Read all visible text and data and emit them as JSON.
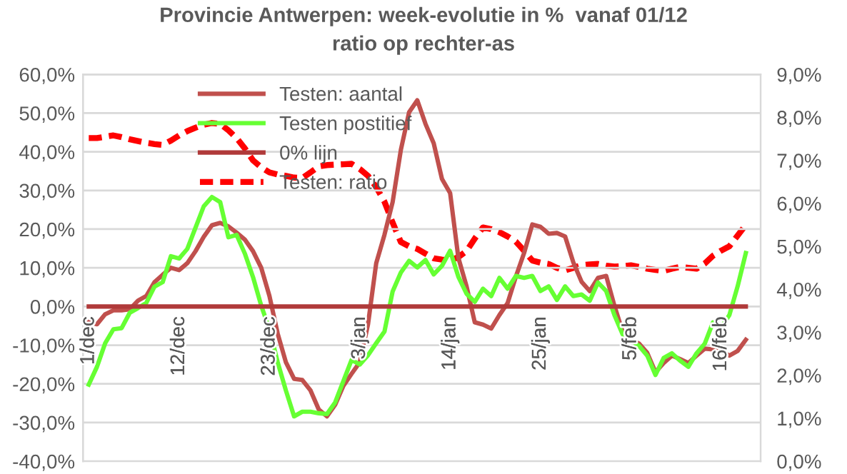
{
  "chart_data": {
    "type": "line",
    "title": "Provincie Antwerpen: week-evolutie in %  vanaf 01/12",
    "subtitle": "ratio op rechter-as",
    "categories": [
      "1/dec",
      null,
      null,
      null,
      null,
      null,
      null,
      null,
      null,
      null,
      null,
      "12/dec",
      null,
      null,
      null,
      null,
      null,
      null,
      null,
      null,
      null,
      null,
      "23/dec",
      null,
      null,
      null,
      null,
      null,
      null,
      null,
      null,
      null,
      null,
      "3/jan",
      null,
      null,
      null,
      null,
      null,
      null,
      null,
      null,
      null,
      null,
      "14/jan",
      null,
      null,
      null,
      null,
      null,
      null,
      null,
      null,
      null,
      null,
      "25/jan",
      null,
      null,
      null,
      null,
      null,
      null,
      null,
      null,
      null,
      null,
      "5/feb",
      null,
      null,
      null,
      null,
      null,
      null,
      null,
      null,
      null,
      null,
      "16/feb",
      null,
      null,
      null
    ],
    "series": [
      {
        "name": "Testen: aantal",
        "color": "#c0504d",
        "line_style": "solid",
        "values": [
          -4,
          -4.6,
          -2,
          -1,
          -1,
          -0.7,
          1.5,
          2.7,
          6.3,
          8.2,
          10,
          9.4,
          11.2,
          14.3,
          18,
          21,
          21.6,
          20.7,
          19.1,
          17.3,
          14.3,
          10,
          2.7,
          -7,
          -14.4,
          -18.7,
          -19,
          -21.7,
          -26.6,
          -28.4,
          -25.4,
          -20.5,
          -17.4,
          -14.4,
          -4.6,
          11.2,
          18.5,
          27,
          40.5,
          50.2,
          53.3,
          47.2,
          42.2,
          33,
          29.3,
          12.6,
          5.2,
          -4.1,
          -4.7,
          -5.7,
          -2.2,
          0.9,
          7.7,
          13.8,
          21.2,
          20.6,
          18.8,
          19,
          18.1,
          11.4,
          6.4,
          4,
          7.4,
          7.9,
          0.2,
          -6.5,
          -8.6,
          -9.6,
          -12,
          -17,
          -14.6,
          -12.7,
          -13.6,
          -14.6,
          -12.7,
          -10.9,
          -11.1,
          -11.5,
          -12.7,
          -11.5,
          -8.6
        ]
      },
      {
        "name": "Testen postitief",
        "color": "#66ff33",
        "line_style": "solid",
        "values": [
          -20.2,
          -15.6,
          -9.5,
          -5.9,
          -5.6,
          -1.6,
          -0.4,
          0.9,
          5.1,
          6.3,
          13,
          12.4,
          14.9,
          20.4,
          25.9,
          28.3,
          27,
          17.9,
          18.5,
          13.7,
          7.6,
          0.2,
          -5.9,
          -14.4,
          -21.7,
          -28.4,
          -27.2,
          -27.2,
          -27.6,
          -27.8,
          -24.8,
          -19.3,
          -13.8,
          -15,
          -12.6,
          -9.5,
          -6.5,
          3.9,
          8.8,
          11.8,
          10.1,
          12,
          8.3,
          10.5,
          14.4,
          7.7,
          3.3,
          1.2,
          4.6,
          2.7,
          7.4,
          4.6,
          7.9,
          7.4,
          7.9,
          4,
          5.2,
          1.7,
          5.2,
          2.7,
          3.1,
          1.5,
          6.2,
          4,
          -2.2,
          -7.2,
          -8.6,
          -10.2,
          -12.7,
          -17.7,
          -13.3,
          -12.1,
          -14,
          -15.6,
          -12.1,
          -9.6,
          -4.1,
          -5.4,
          -2.2,
          5.2,
          13.8
        ]
      },
      {
        "name": "0% lijn",
        "color": "#b03a3a",
        "line_style": "solid",
        "values": [
          0,
          0,
          0,
          0,
          0,
          0,
          0,
          0,
          0,
          0,
          0,
          0,
          0,
          0,
          0,
          0,
          0,
          0,
          0,
          0,
          0,
          0,
          0,
          0,
          0,
          0,
          0,
          0,
          0,
          0,
          0,
          0,
          0,
          0,
          0,
          0,
          0,
          0,
          0,
          0,
          0,
          0,
          0,
          0,
          0,
          0,
          0,
          0,
          0,
          0,
          0,
          0,
          0,
          0,
          0,
          0,
          0,
          0,
          0,
          0,
          0,
          0,
          0,
          0,
          0,
          0,
          0,
          0,
          0,
          0,
          0,
          0,
          0,
          0,
          0,
          0,
          0,
          0,
          0,
          0,
          0
        ]
      },
      {
        "name": "Testen: ratio",
        "color": "#ff0000",
        "line_style": "dashed",
        "axis": "y2",
        "values": [
          7.52,
          7.52,
          7.55,
          7.58,
          7.54,
          7.49,
          7.45,
          7.41,
          7.38,
          7.36,
          7.46,
          7.58,
          7.68,
          7.76,
          7.83,
          7.87,
          7.85,
          7.7,
          7.52,
          7.28,
          7.0,
          6.84,
          6.72,
          6.67,
          6.64,
          6.6,
          6.59,
          6.72,
          6.86,
          6.89,
          6.9,
          6.91,
          6.92,
          6.8,
          6.64,
          6.38,
          6.04,
          5.55,
          5.1,
          5.0,
          4.94,
          4.83,
          4.72,
          4.69,
          4.67,
          4.75,
          4.89,
          5.18,
          5.44,
          5.4,
          5.33,
          5.23,
          5.11,
          4.9,
          4.67,
          4.62,
          4.59,
          4.5,
          4.44,
          4.5,
          4.56,
          4.58,
          4.59,
          4.55,
          4.53,
          4.54,
          4.56,
          4.52,
          4.48,
          4.45,
          4.43,
          4.48,
          4.52,
          4.5,
          4.48,
          4.6,
          4.78,
          4.9,
          5.0,
          5.25,
          5.5
        ]
      }
    ],
    "ylim": [
      -40,
      60
    ],
    "yticks": [
      {
        "value": -40,
        "label": "-40,0%"
      },
      {
        "value": -30,
        "label": "-30,0%"
      },
      {
        "value": -20,
        "label": "-20,0%"
      },
      {
        "value": -10,
        "label": "-10,0%"
      },
      {
        "value": 0,
        "label": "0,0%"
      },
      {
        "value": 10,
        "label": "10,0%"
      },
      {
        "value": 20,
        "label": "20,0%"
      },
      {
        "value": 30,
        "label": "30,0%"
      },
      {
        "value": 40,
        "label": "40,0%"
      },
      {
        "value": 50,
        "label": "50,0%"
      },
      {
        "value": 60,
        "label": "60,0%"
      }
    ],
    "y2lim": [
      0,
      9
    ],
    "y2ticks": [
      {
        "value": 0,
        "label": "0,0%"
      },
      {
        "value": 1,
        "label": "1,0%"
      },
      {
        "value": 2,
        "label": "2,0%"
      },
      {
        "value": 3,
        "label": "3,0%"
      },
      {
        "value": 4,
        "label": "4,0%"
      },
      {
        "value": 5,
        "label": "5,0%"
      },
      {
        "value": 6,
        "label": "6,0%"
      },
      {
        "value": 7,
        "label": "7,0%"
      },
      {
        "value": 8,
        "label": "8,0%"
      },
      {
        "value": 9,
        "label": "9,0%"
      }
    ],
    "grid": "y",
    "legend": "top left",
    "marker": "none"
  }
}
